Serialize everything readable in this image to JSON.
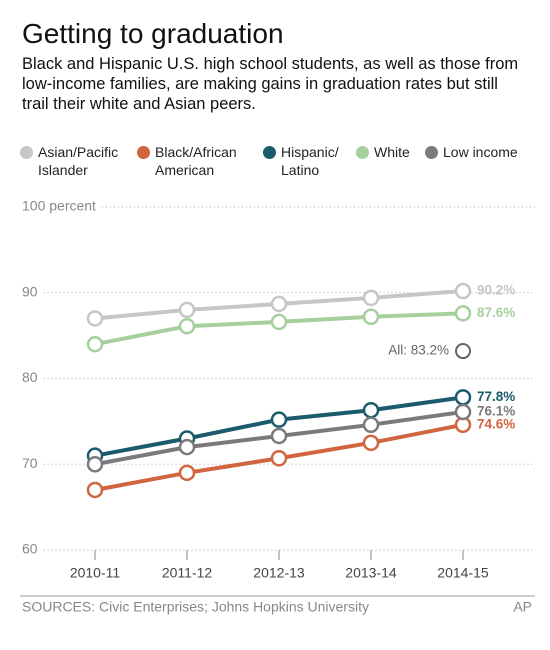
{
  "chart_data": {
    "type": "line",
    "title": "Getting to graduation",
    "subtitle": "Black and Hispanic U.S. high school students, as well as those from low-income families, are making gains in graduation rates but still trail their white and Asian peers.",
    "categories": [
      "2010-11",
      "2011-12",
      "2012-13",
      "2013-14",
      "2014-15"
    ],
    "series": [
      {
        "name": "Asian/Pacific Islander",
        "color": "#c6c6c6",
        "values": [
          87.0,
          88.0,
          88.7,
          89.4,
          90.2
        ],
        "value_labels": [
          null,
          null,
          null,
          null,
          "90.2%"
        ]
      },
      {
        "name": "Black/African American",
        "color": "#d0653f",
        "values": [
          67.0,
          69.0,
          70.7,
          72.5,
          74.6
        ],
        "value_labels": [
          null,
          null,
          null,
          null,
          "74.6%"
        ]
      },
      {
        "name": "Hispanic/ Latino",
        "color": "#1b5b6c",
        "values": [
          71.0,
          73.0,
          75.2,
          76.3,
          77.8
        ],
        "value_labels": [
          null,
          null,
          null,
          null,
          "77.8%"
        ]
      },
      {
        "name": "White",
        "color": "#a6cf9e",
        "values": [
          84.0,
          86.1,
          86.6,
          87.2,
          87.6
        ],
        "value_labels": [
          null,
          null,
          null,
          null,
          "87.6%"
        ]
      },
      {
        "name": "Low income",
        "color": "#7a7a7c",
        "values": [
          70.0,
          72.0,
          73.3,
          74.6,
          76.1
        ],
        "value_labels": [
          null,
          null,
          null,
          null,
          "76.1%"
        ]
      }
    ],
    "all": {
      "label": "All: 83.2%",
      "value": 83.2,
      "color": "#666666"
    },
    "ylim": [
      60,
      100
    ],
    "yticks": [
      60,
      70,
      80,
      90,
      {
        "value": 100,
        "label": "100 percent"
      }
    ],
    "grid": true,
    "source": "SOURCES: Civic Enterprises; Johns Hopkins University",
    "credit": "AP"
  }
}
